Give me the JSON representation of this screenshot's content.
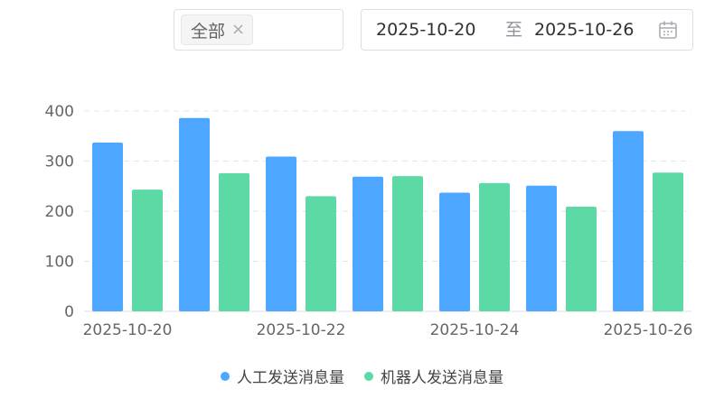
{
  "filter": {
    "tag_label": "全部",
    "tag_close": "×"
  },
  "date_range": {
    "start": "2025-10-20",
    "separator": "至",
    "end": "2025-10-26",
    "icon": "calendar-icon"
  },
  "colors": {
    "series_1": "#4da6ff",
    "series_2": "#5dd9a5",
    "axis_text": "#666666",
    "grid": "#e0e6f1"
  },
  "chart_data": {
    "type": "bar",
    "categories": [
      "2025-10-20",
      "2025-10-21",
      "2025-10-22",
      "2025-10-23",
      "2025-10-24",
      "2025-10-25",
      "2025-10-26"
    ],
    "x_tick_labels": [
      "2025-10-20",
      "2025-10-22",
      "2025-10-24",
      "2025-10-26"
    ],
    "series": [
      {
        "name": "人工发送消息量",
        "values": [
          337,
          386,
          309,
          269,
          237,
          251,
          360
        ]
      },
      {
        "name": "机器人发送消息量",
        "values": [
          243,
          276,
          230,
          270,
          256,
          209,
          277
        ]
      }
    ],
    "ylim": [
      0,
      400
    ],
    "y_ticks": [
      0,
      100,
      200,
      300,
      400
    ],
    "grid": true,
    "legend_position": "bottom",
    "xlabel": "",
    "ylabel": ""
  }
}
